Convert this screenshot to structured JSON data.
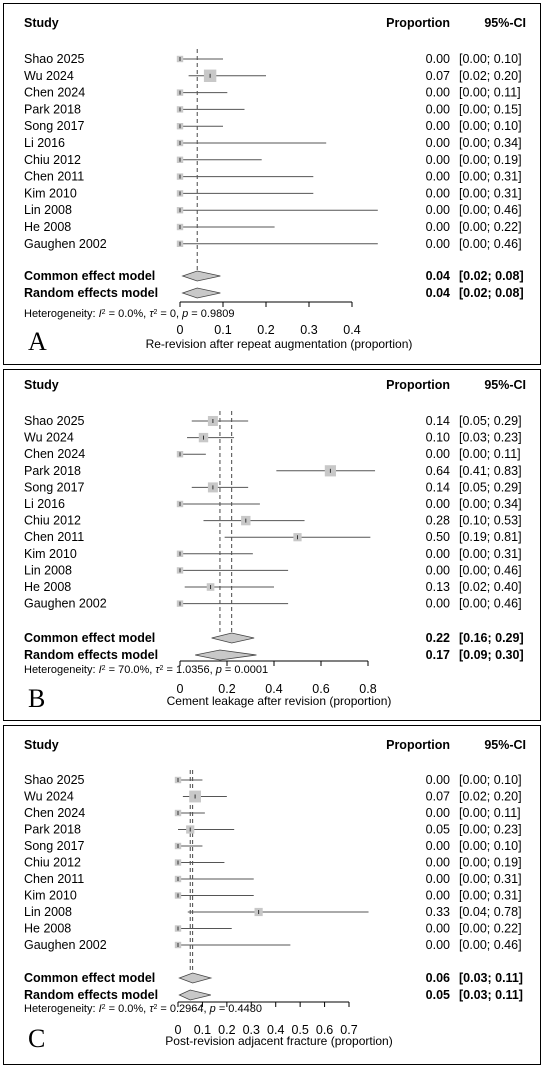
{
  "colors": {
    "box": "#c8c8c8",
    "line": "#555555",
    "diamond": "#c8c8c8",
    "text": "#000000"
  },
  "chart_data": [
    {
      "type": "forest",
      "panel_label": "A",
      "header": {
        "study": "Study",
        "proportion": "Proportion",
        "ci": "95%-CI"
      },
      "studies": [
        {
          "name": "Shao 2025",
          "est": 0.0,
          "lo": 0.0,
          "hi": 0.1,
          "weight": 0.4,
          "text_prop": "0.00",
          "text_ci": "[0.00; 0.10]"
        },
        {
          "name": "Wu 2024",
          "est": 0.07,
          "lo": 0.02,
          "hi": 0.2,
          "weight": 1.4,
          "text_prop": "0.07",
          "text_ci": "[0.02; 0.20]"
        },
        {
          "name": "Chen 2024",
          "est": 0.0,
          "lo": 0.0,
          "hi": 0.11,
          "weight": 0.4,
          "text_prop": "0.00",
          "text_ci": "[0.00; 0.11]"
        },
        {
          "name": "Park 2018",
          "est": 0.0,
          "lo": 0.0,
          "hi": 0.15,
          "weight": 0.4,
          "text_prop": "0.00",
          "text_ci": "[0.00; 0.15]"
        },
        {
          "name": "Song 2017",
          "est": 0.0,
          "lo": 0.0,
          "hi": 0.1,
          "weight": 0.4,
          "text_prop": "0.00",
          "text_ci": "[0.00; 0.10]"
        },
        {
          "name": "Li 2016",
          "est": 0.0,
          "lo": 0.0,
          "hi": 0.34,
          "weight": 0.4,
          "text_prop": "0.00",
          "text_ci": "[0.00; 0.34]"
        },
        {
          "name": "Chiu 2012",
          "est": 0.0,
          "lo": 0.0,
          "hi": 0.19,
          "weight": 0.4,
          "text_prop": "0.00",
          "text_ci": "[0.00; 0.19]"
        },
        {
          "name": "Chen 2011",
          "est": 0.0,
          "lo": 0.0,
          "hi": 0.31,
          "weight": 0.4,
          "text_prop": "0.00",
          "text_ci": "[0.00; 0.31]"
        },
        {
          "name": "Kim 2010",
          "est": 0.0,
          "lo": 0.0,
          "hi": 0.31,
          "weight": 0.4,
          "text_prop": "0.00",
          "text_ci": "[0.00; 0.31]"
        },
        {
          "name": "Lin 2008",
          "est": 0.0,
          "lo": 0.0,
          "hi": 0.46,
          "weight": 0.4,
          "text_prop": "0.00",
          "text_ci": "[0.00; 0.46]"
        },
        {
          "name": "He 2008",
          "est": 0.0,
          "lo": 0.0,
          "hi": 0.22,
          "weight": 0.4,
          "text_prop": "0.00",
          "text_ci": "[0.00; 0.22]"
        },
        {
          "name": "Gaughen 2002",
          "est": 0.0,
          "lo": 0.0,
          "hi": 0.46,
          "weight": 0.4,
          "text_prop": "0.00",
          "text_ci": "[0.00; 0.46]"
        }
      ],
      "pooled": [
        {
          "name": "Common effect model",
          "est": 0.04,
          "lo": 0.02,
          "hi": 0.08,
          "text_prop": "0.04",
          "text_ci": "[0.02; 0.08]"
        },
        {
          "name": "Random effects model",
          "est": 0.04,
          "lo": 0.02,
          "hi": 0.08,
          "text_prop": "0.04",
          "text_ci": "[0.02; 0.08]"
        }
      ],
      "heterogeneity": {
        "prefix": "Heterogeneity: ",
        "i2": "I",
        "i2_value": " = 0.0%, ",
        "tau2": "τ",
        "tau2_value": " = 0, ",
        "p": "p",
        "p_value": " = 0.9809"
      },
      "xaxis": {
        "ticks": [
          0,
          0.1,
          0.2,
          0.3,
          0.4
        ],
        "tick_labels": [
          "0",
          "0.1",
          "0.2",
          "0.3",
          "0.4"
        ],
        "label": "Re-revision after repeat augmentation (proportion)",
        "range": [
          0,
          0.46
        ]
      }
    },
    {
      "type": "forest",
      "panel_label": "B",
      "header": {
        "study": "Study",
        "proportion": "Proportion",
        "ci": "95%-CI"
      },
      "studies": [
        {
          "name": "Shao 2025",
          "est": 0.14,
          "lo": 0.05,
          "hi": 0.29,
          "weight": 1.0,
          "text_prop": "0.14",
          "text_ci": "[0.05; 0.29]"
        },
        {
          "name": "Wu 2024",
          "est": 0.1,
          "lo": 0.03,
          "hi": 0.23,
          "weight": 0.9,
          "text_prop": "0.10",
          "text_ci": "[0.03; 0.23]"
        },
        {
          "name": "Chen 2024",
          "est": 0.0,
          "lo": 0.0,
          "hi": 0.11,
          "weight": 0.4,
          "text_prop": "0.00",
          "text_ci": "[0.00; 0.11]"
        },
        {
          "name": "Park 2018",
          "est": 0.64,
          "lo": 0.41,
          "hi": 0.83,
          "weight": 1.2,
          "text_prop": "0.64",
          "text_ci": "[0.41; 0.83]"
        },
        {
          "name": "Song 2017",
          "est": 0.14,
          "lo": 0.05,
          "hi": 0.29,
          "weight": 1.0,
          "text_prop": "0.14",
          "text_ci": "[0.05; 0.29]"
        },
        {
          "name": "Li 2016",
          "est": 0.0,
          "lo": 0.0,
          "hi": 0.34,
          "weight": 0.4,
          "text_prop": "0.00",
          "text_ci": "[0.00; 0.34]"
        },
        {
          "name": "Chiu 2012",
          "est": 0.28,
          "lo": 0.1,
          "hi": 0.53,
          "weight": 0.9,
          "text_prop": "0.28",
          "text_ci": "[0.10; 0.53]"
        },
        {
          "name": "Chen 2011",
          "est": 0.5,
          "lo": 0.19,
          "hi": 0.81,
          "weight": 0.7,
          "text_prop": "0.50",
          "text_ci": "[0.19; 0.81]"
        },
        {
          "name": "Kim 2010",
          "est": 0.0,
          "lo": 0.0,
          "hi": 0.31,
          "weight": 0.4,
          "text_prop": "0.00",
          "text_ci": "[0.00; 0.31]"
        },
        {
          "name": "Lin 2008",
          "est": 0.0,
          "lo": 0.0,
          "hi": 0.46,
          "weight": 0.4,
          "text_prop": "0.00",
          "text_ci": "[0.00; 0.46]"
        },
        {
          "name": "He 2008",
          "est": 0.13,
          "lo": 0.02,
          "hi": 0.4,
          "weight": 0.6,
          "text_prop": "0.13",
          "text_ci": "[0.02; 0.40]"
        },
        {
          "name": "Gaughen 2002",
          "est": 0.0,
          "lo": 0.0,
          "hi": 0.46,
          "weight": 0.4,
          "text_prop": "0.00",
          "text_ci": "[0.00; 0.46]"
        }
      ],
      "pooled": [
        {
          "name": "Common effect model",
          "est": 0.22,
          "lo": 0.16,
          "hi": 0.29,
          "text_prop": "0.22",
          "text_ci": "[0.16; 0.29]"
        },
        {
          "name": "Random effects model",
          "est": 0.17,
          "lo": 0.09,
          "hi": 0.3,
          "text_prop": "0.17",
          "text_ci": "[0.09; 0.30]"
        }
      ],
      "heterogeneity": {
        "prefix": "Heterogeneity: ",
        "i2": "I",
        "i2_value": " = 70.0%, ",
        "tau2": "τ",
        "tau2_value": " = 1.0356, ",
        "p": "p",
        "p_value": " = 0.0001"
      },
      "xaxis": {
        "ticks": [
          0,
          0.2,
          0.4,
          0.6,
          0.8
        ],
        "tick_labels": [
          "0",
          "0.2",
          "0.4",
          "0.6",
          "0.8"
        ],
        "label": "Cement leakage after revision (proportion)",
        "range": [
          0,
          0.83
        ]
      }
    },
    {
      "type": "forest",
      "panel_label": "C",
      "header": {
        "study": "Study",
        "proportion": "Proportion",
        "ci": "95%-CI"
      },
      "studies": [
        {
          "name": "Shao 2025",
          "est": 0.0,
          "lo": 0.0,
          "hi": 0.1,
          "weight": 0.4,
          "text_prop": "0.00",
          "text_ci": "[0.00; 0.10]"
        },
        {
          "name": "Wu 2024",
          "est": 0.07,
          "lo": 0.02,
          "hi": 0.2,
          "weight": 1.3,
          "text_prop": "0.07",
          "text_ci": "[0.02; 0.20]"
        },
        {
          "name": "Chen 2024",
          "est": 0.0,
          "lo": 0.0,
          "hi": 0.11,
          "weight": 0.4,
          "text_prop": "0.00",
          "text_ci": "[0.00; 0.11]"
        },
        {
          "name": "Park 2018",
          "est": 0.05,
          "lo": 0.0,
          "hi": 0.23,
          "weight": 0.7,
          "text_prop": "0.05",
          "text_ci": "[0.00; 0.23]"
        },
        {
          "name": "Song 2017",
          "est": 0.0,
          "lo": 0.0,
          "hi": 0.1,
          "weight": 0.4,
          "text_prop": "0.00",
          "text_ci": "[0.00; 0.10]"
        },
        {
          "name": "Chiu 2012",
          "est": 0.0,
          "lo": 0.0,
          "hi": 0.19,
          "weight": 0.4,
          "text_prop": "0.00",
          "text_ci": "[0.00; 0.19]"
        },
        {
          "name": "Chen 2011",
          "est": 0.0,
          "lo": 0.0,
          "hi": 0.31,
          "weight": 0.4,
          "text_prop": "0.00",
          "text_ci": "[0.00; 0.31]"
        },
        {
          "name": "Kim 2010",
          "est": 0.0,
          "lo": 0.0,
          "hi": 0.31,
          "weight": 0.4,
          "text_prop": "0.00",
          "text_ci": "[0.00; 0.31]"
        },
        {
          "name": "Lin 2008",
          "est": 0.33,
          "lo": 0.04,
          "hi": 0.78,
          "weight": 0.7,
          "text_prop": "0.33",
          "text_ci": "[0.04; 0.78]"
        },
        {
          "name": "He 2008",
          "est": 0.0,
          "lo": 0.0,
          "hi": 0.22,
          "weight": 0.4,
          "text_prop": "0.00",
          "text_ci": "[0.00; 0.22]"
        },
        {
          "name": "Gaughen 2002",
          "est": 0.0,
          "lo": 0.0,
          "hi": 0.46,
          "weight": 0.4,
          "text_prop": "0.00",
          "text_ci": "[0.00; 0.46]"
        }
      ],
      "pooled": [
        {
          "name": "Common effect model",
          "est": 0.06,
          "lo": 0.03,
          "hi": 0.11,
          "text_prop": "0.06",
          "text_ci": "[0.03; 0.11]"
        },
        {
          "name": "Random effects model",
          "est": 0.05,
          "lo": 0.03,
          "hi": 0.11,
          "text_prop": "0.05",
          "text_ci": "[0.03; 0.11]"
        }
      ],
      "heterogeneity": {
        "prefix": "Heterogeneity: ",
        "i2": "I",
        "i2_value": " = 0.0%, ",
        "tau2": "τ",
        "tau2_value": " = 0.2964, ",
        "p": "p",
        "p_value": " = 0.4480"
      },
      "xaxis": {
        "ticks": [
          0,
          0.1,
          0.2,
          0.3,
          0.4,
          0.5,
          0.6,
          0.7
        ],
        "tick_labels": [
          "0",
          "0.1",
          "0.2",
          "0.3",
          "0.4",
          "0.5",
          "0.6",
          "0.7"
        ],
        "label": "Post-revision adjacent fracture (proportion)",
        "range": [
          0,
          0.78
        ]
      }
    }
  ]
}
